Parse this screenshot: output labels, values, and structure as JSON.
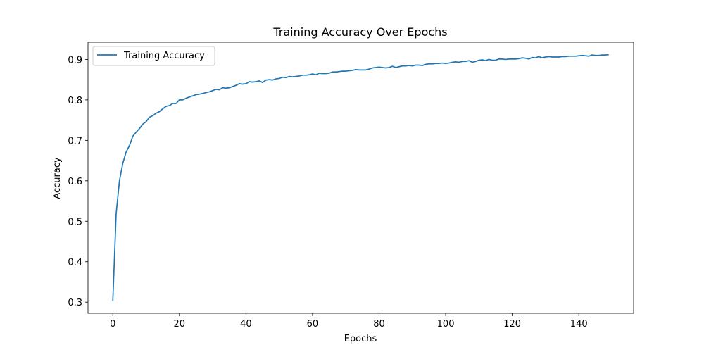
{
  "chart_data": {
    "type": "line",
    "title": "Training Accuracy Over Epochs",
    "xlabel": "Epochs",
    "ylabel": "Accuracy",
    "xlim": [
      -7.45,
      156.45
    ],
    "ylim": [
      0.2725,
      0.9425
    ],
    "xticks": [
      0,
      20,
      40,
      60,
      80,
      100,
      120,
      140
    ],
    "yticks": [
      0.3,
      0.4,
      0.5,
      0.6,
      0.7,
      0.8,
      0.9
    ],
    "ytick_labels": [
      "0.3",
      "0.4",
      "0.5",
      "0.6",
      "0.7",
      "0.8",
      "0.9"
    ],
    "grid": false,
    "legend_position": "top-left",
    "series": [
      {
        "name": "Training Accuracy",
        "color": "#1f77b4",
        "x": [
          0,
          1,
          2,
          3,
          4,
          5,
          6,
          7,
          8,
          9,
          10,
          11,
          12,
          13,
          14,
          15,
          16,
          17,
          18,
          19,
          20,
          21,
          22,
          23,
          24,
          25,
          26,
          27,
          28,
          29,
          30,
          31,
          32,
          33,
          34,
          35,
          36,
          37,
          38,
          39,
          40,
          41,
          42,
          43,
          44,
          45,
          46,
          47,
          48,
          49,
          50,
          51,
          52,
          53,
          54,
          55,
          56,
          57,
          58,
          59,
          60,
          61,
          62,
          63,
          64,
          65,
          66,
          67,
          68,
          69,
          70,
          71,
          72,
          73,
          74,
          75,
          76,
          77,
          78,
          79,
          80,
          81,
          82,
          83,
          84,
          85,
          86,
          87,
          88,
          89,
          90,
          91,
          92,
          93,
          94,
          95,
          96,
          97,
          98,
          99,
          100,
          101,
          102,
          103,
          104,
          105,
          106,
          107,
          108,
          109,
          110,
          111,
          112,
          113,
          114,
          115,
          116,
          117,
          118,
          119,
          120,
          121,
          122,
          123,
          124,
          125,
          126,
          127,
          128,
          129,
          130,
          131,
          132,
          133,
          134,
          135,
          136,
          137,
          138,
          139,
          140,
          141,
          142,
          143,
          144,
          145,
          146,
          147,
          148,
          149
        ],
        "y": [
          0.303,
          0.518,
          0.6,
          0.643,
          0.671,
          0.687,
          0.71,
          0.72,
          0.729,
          0.74,
          0.746,
          0.757,
          0.761,
          0.767,
          0.771,
          0.778,
          0.784,
          0.786,
          0.791,
          0.791,
          0.8,
          0.8,
          0.804,
          0.807,
          0.81,
          0.813,
          0.814,
          0.816,
          0.818,
          0.82,
          0.823,
          0.826,
          0.825,
          0.83,
          0.829,
          0.83,
          0.833,
          0.836,
          0.84,
          0.839,
          0.84,
          0.845,
          0.844,
          0.845,
          0.847,
          0.843,
          0.849,
          0.85,
          0.849,
          0.852,
          0.853,
          0.856,
          0.855,
          0.858,
          0.857,
          0.858,
          0.859,
          0.861,
          0.861,
          0.862,
          0.864,
          0.862,
          0.866,
          0.865,
          0.865,
          0.866,
          0.869,
          0.869,
          0.87,
          0.871,
          0.871,
          0.872,
          0.873,
          0.875,
          0.874,
          0.874,
          0.874,
          0.876,
          0.879,
          0.88,
          0.881,
          0.88,
          0.879,
          0.88,
          0.883,
          0.88,
          0.882,
          0.884,
          0.884,
          0.885,
          0.884,
          0.886,
          0.886,
          0.885,
          0.888,
          0.889,
          0.889,
          0.89,
          0.89,
          0.891,
          0.89,
          0.891,
          0.893,
          0.894,
          0.893,
          0.895,
          0.895,
          0.897,
          0.893,
          0.895,
          0.898,
          0.899,
          0.897,
          0.9,
          0.898,
          0.898,
          0.901,
          0.901,
          0.9,
          0.901,
          0.901,
          0.901,
          0.902,
          0.904,
          0.903,
          0.901,
          0.905,
          0.904,
          0.907,
          0.904,
          0.906,
          0.907,
          0.906,
          0.906,
          0.906,
          0.907,
          0.907,
          0.908,
          0.908,
          0.908,
          0.909,
          0.91,
          0.909,
          0.908,
          0.911,
          0.91,
          0.91,
          0.911,
          0.911,
          0.912
        ]
      }
    ]
  }
}
